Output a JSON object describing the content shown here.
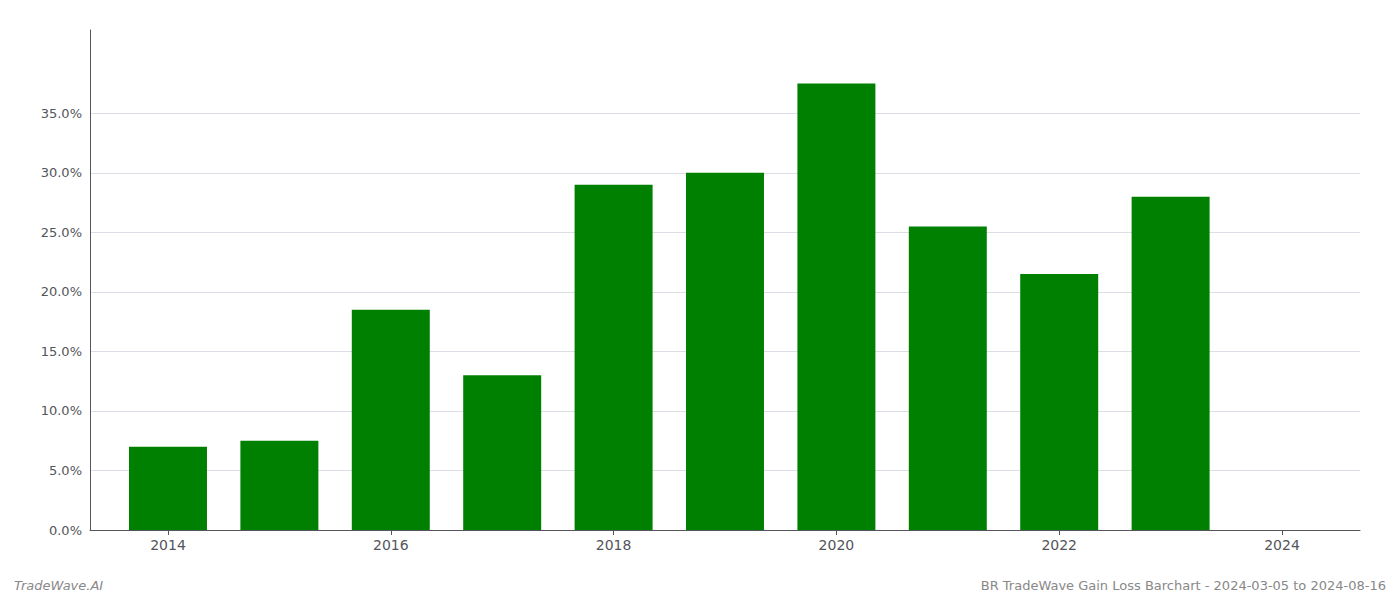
{
  "chart_data": {
    "type": "bar",
    "x": [
      2014,
      2015,
      2016,
      2017,
      2018,
      2019,
      2020,
      2021,
      2022,
      2023
    ],
    "values": [
      0.07,
      0.075,
      0.185,
      0.13,
      0.29,
      0.3,
      0.375,
      0.255,
      0.215,
      0.28
    ],
    "color": "#008000",
    "xlim": [
      2013.3,
      2024.7
    ],
    "xticks": [
      2014,
      2016,
      2018,
      2020,
      2022,
      2024
    ],
    "ylim": [
      0,
      0.42
    ],
    "yticks": [
      {
        "value": 0.0,
        "label": "0.0%"
      },
      {
        "value": 0.05,
        "label": "5.0%"
      },
      {
        "value": 0.1,
        "label": "10.0%"
      },
      {
        "value": 0.15,
        "label": "15.0%"
      },
      {
        "value": 0.2,
        "label": "20.0%"
      },
      {
        "value": 0.25,
        "label": "25.0%"
      },
      {
        "value": 0.3,
        "label": "30.0%"
      },
      {
        "value": 0.35,
        "label": "35.0%"
      }
    ],
    "grid": true,
    "annotations": [
      "TradeWave.AI",
      "BR TradeWave Gain Loss Barchart - 2024-03-05 to 2024-08-16"
    ]
  }
}
